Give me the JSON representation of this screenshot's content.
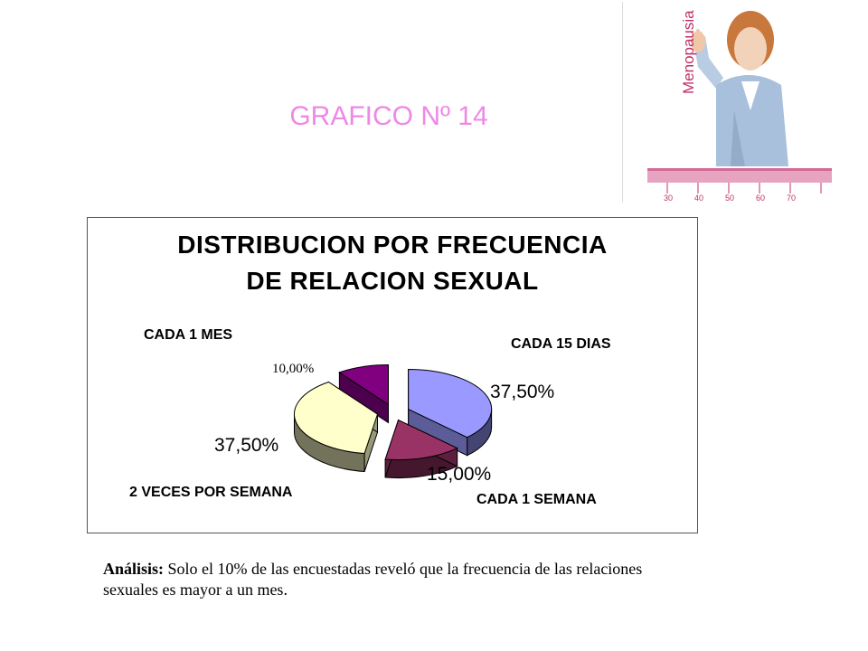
{
  "slide_title": "GRAFICO Nº 14",
  "promo": {
    "brand_text": "Menopausia",
    "scale_labels": [
      "30",
      "40",
      "50",
      "60",
      "70"
    ],
    "accent_color": "#c0306a"
  },
  "chart_data": {
    "type": "pie",
    "title_lines": [
      "DISTRIBUCION POR FRECUENCIA",
      "DE RELACION SEXUAL"
    ],
    "slices": [
      {
        "category": "CADA 15 DIAS",
        "value": 37.5,
        "label": "37,50%",
        "color": "#9999ff"
      },
      {
        "category": "CADA 1 SEMANA",
        "value": 15.0,
        "label": "15,00%",
        "color": "#993366"
      },
      {
        "category": "2 VECES POR SEMANA",
        "value": 37.5,
        "label": "37,50%",
        "color": "#ffffcc"
      },
      {
        "category": "CADA 1 MES",
        "value": 10.0,
        "label": "10,00%",
        "color": "#800080"
      }
    ]
  },
  "analysis": {
    "label": "Análisis:",
    "text": " Solo el 10% de las encuestadas reveló que la frecuencia de las relaciones sexuales es mayor  a un mes."
  }
}
